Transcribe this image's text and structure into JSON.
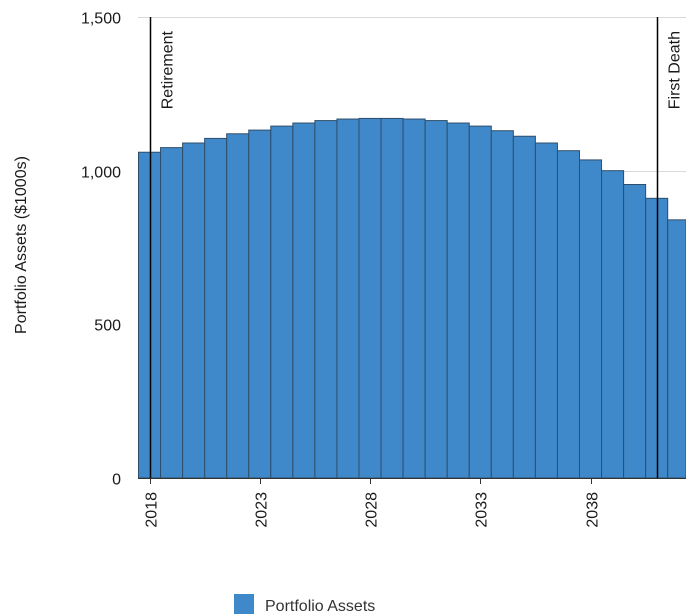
{
  "chart_data": {
    "type": "bar",
    "ylabel": "Portfolio Assets ($1000s)",
    "xlabel": "",
    "ylim": [
      0,
      1500
    ],
    "yticks": [
      {
        "value": 0,
        "label": "0"
      },
      {
        "value": 500,
        "label": "500"
      },
      {
        "value": 1000,
        "label": "1,000"
      },
      {
        "value": 1500,
        "label": "1,500"
      }
    ],
    "xticks": [
      {
        "value": 2018,
        "label": "2018"
      },
      {
        "value": 2023,
        "label": "2023"
      },
      {
        "value": 2028,
        "label": "2028"
      },
      {
        "value": 2033,
        "label": "2033"
      },
      {
        "value": 2038,
        "label": "2038"
      }
    ],
    "grid": "horizontal",
    "legend_position": "bottom",
    "bar_color": "#3f88c9",
    "series": [
      {
        "name": "Portfolio Assets",
        "x": [
          2018,
          2019,
          2020,
          2021,
          2022,
          2023,
          2024,
          2025,
          2026,
          2027,
          2028,
          2029,
          2030,
          2031,
          2032,
          2033,
          2034,
          2035,
          2036,
          2037,
          2038,
          2039,
          2040,
          2041,
          2042
        ],
        "values": [
          1060,
          1075,
          1090,
          1105,
          1120,
          1132,
          1145,
          1155,
          1163,
          1168,
          1170,
          1170,
          1168,
          1163,
          1155,
          1145,
          1130,
          1112,
          1090,
          1065,
          1035,
          1000,
          955,
          910,
          840
        ]
      }
    ],
    "annotations": [
      {
        "x": 2018,
        "label": "Retirement"
      },
      {
        "x": 2041,
        "label": "First Death"
      }
    ]
  }
}
